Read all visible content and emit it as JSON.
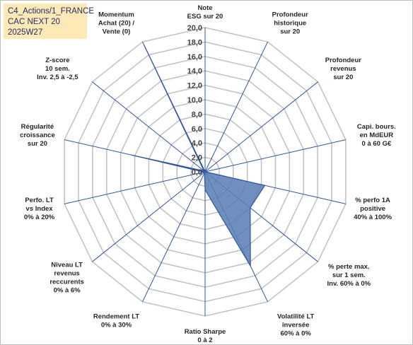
{
  "header": {
    "line1": "C4_Actions/1_FRANCE",
    "line2": "CAC NEXT 20",
    "line3": "2025W27"
  },
  "colors": {
    "fill": "#5b80b5",
    "stroke": "#2f55a0",
    "grid": "#c0c0c0",
    "title_bg": "#fde9b5"
  },
  "chart_data": {
    "type": "radar",
    "ylim": [
      0,
      20
    ],
    "tick_step": 2,
    "tick_labels": [
      "0,0",
      "2,0",
      "4,0",
      "6,0",
      "8,0",
      "10,0",
      "12,0",
      "14,0",
      "16,0",
      "18,0",
      "20,0"
    ],
    "axes": [
      {
        "label": [
          "Note",
          "ESG sur 20"
        ]
      },
      {
        "label": [
          "Profondeur",
          "historique",
          "sur 20"
        ]
      },
      {
        "label": [
          "Profondeur",
          "revenus",
          "sur 20"
        ]
      },
      {
        "label": [
          "Capi. bours.",
          "en MdEUR",
          "0 à 60 G€"
        ]
      },
      {
        "label": [
          "% perfo 1A",
          "positive",
          "40% à 100%"
        ]
      },
      {
        "label": [
          "% perte max.",
          "sur 1 sem.",
          "Inv. 60% à 0%"
        ]
      },
      {
        "label": [
          "Volatilité LT",
          "inversée",
          "60% à 0%"
        ]
      },
      {
        "label": [
          "Ratio Sharpe",
          "0 à 2"
        ]
      },
      {
        "label": [
          "Rendement LT",
          "0% à 30%"
        ]
      },
      {
        "label": [
          "Niveau LT",
          "revenus",
          "reccurents",
          "0% à 6%"
        ]
      },
      {
        "label": [
          "Perfo. LT",
          "vs Index",
          "0% à 20%"
        ]
      },
      {
        "label": [
          "Régularité",
          "croissance",
          "sur 20"
        ]
      },
      {
        "label": [
          "Z-score",
          "10 sem.",
          "Inv. 2,5 à -2,5"
        ]
      },
      {
        "label": [
          "Momentum",
          "Achat (20) /",
          "Vente (0)"
        ]
      }
    ],
    "series": [
      {
        "values": [
          0,
          0,
          0,
          0,
          8.5,
          8,
          14.5,
          2.5,
          0.2,
          0.2,
          0.2,
          10.5,
          0.2,
          19.5
        ]
      }
    ],
    "grid": true,
    "legend": "none"
  }
}
